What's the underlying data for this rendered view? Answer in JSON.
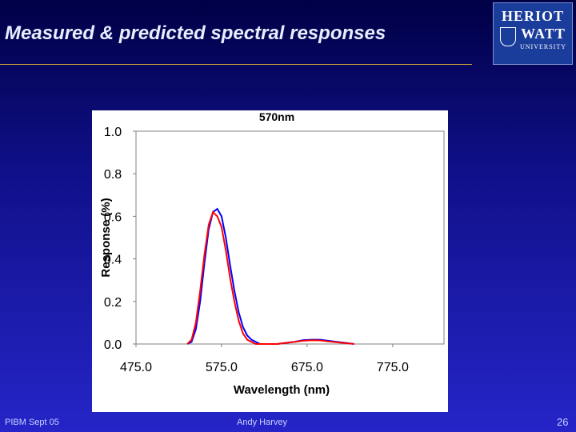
{
  "slide": {
    "title": "Measured & predicted spectral responses"
  },
  "logo": {
    "line1": "HERIOT",
    "line2": "WATT",
    "line3": "UNIVERSITY"
  },
  "footer": {
    "left": "PIBM Sept 05",
    "center": "Andy Harvey",
    "page": "26"
  },
  "chart_data": {
    "type": "line",
    "title": "570nm",
    "x_label": "Wavelength (nm)",
    "y_label": "Response (%)",
    "x": [
      535,
      540,
      545,
      550,
      555,
      560,
      565,
      570,
      575,
      580,
      585,
      590,
      595,
      600,
      605,
      610,
      615,
      620,
      630,
      640,
      650,
      660,
      670,
      680,
      690,
      700,
      710,
      720,
      730
    ],
    "series": [
      {
        "color": "#0000ff",
        "values": [
          0,
          0.01,
          0.07,
          0.2,
          0.38,
          0.54,
          0.62,
          0.635,
          0.6,
          0.5,
          0.37,
          0.25,
          0.15,
          0.08,
          0.04,
          0.02,
          0.01,
          0,
          0,
          0,
          0.005,
          0.01,
          0.018,
          0.02,
          0.02,
          0.015,
          0.01,
          0.005,
          0
        ]
      },
      {
        "color": "#ff0000",
        "values": [
          0,
          0.02,
          0.1,
          0.25,
          0.42,
          0.56,
          0.62,
          0.6,
          0.55,
          0.44,
          0.31,
          0.2,
          0.11,
          0.05,
          0.02,
          0.01,
          0,
          0,
          0,
          0,
          0.005,
          0.01,
          0.015,
          0.018,
          0.017,
          0.012,
          0.008,
          0.004,
          0
        ]
      }
    ],
    "xlim": [
      475,
      835
    ],
    "ylim": [
      0,
      1
    ],
    "xticks": [
      {
        "value": 475,
        "label": "475.0"
      },
      {
        "value": 575,
        "label": "575.0"
      },
      {
        "value": 675,
        "label": "675.0"
      },
      {
        "value": 775,
        "label": "775.0"
      }
    ],
    "yticks": [
      {
        "value": 0,
        "label": "0.0"
      },
      {
        "value": 0.2,
        "label": "0.2"
      },
      {
        "value": 0.4,
        "label": "0.4"
      },
      {
        "value": 0.6,
        "label": "0.6"
      },
      {
        "value": 0.8,
        "label": "0.8"
      },
      {
        "value": 1,
        "label": "1.0"
      }
    ],
    "grid": false
  }
}
